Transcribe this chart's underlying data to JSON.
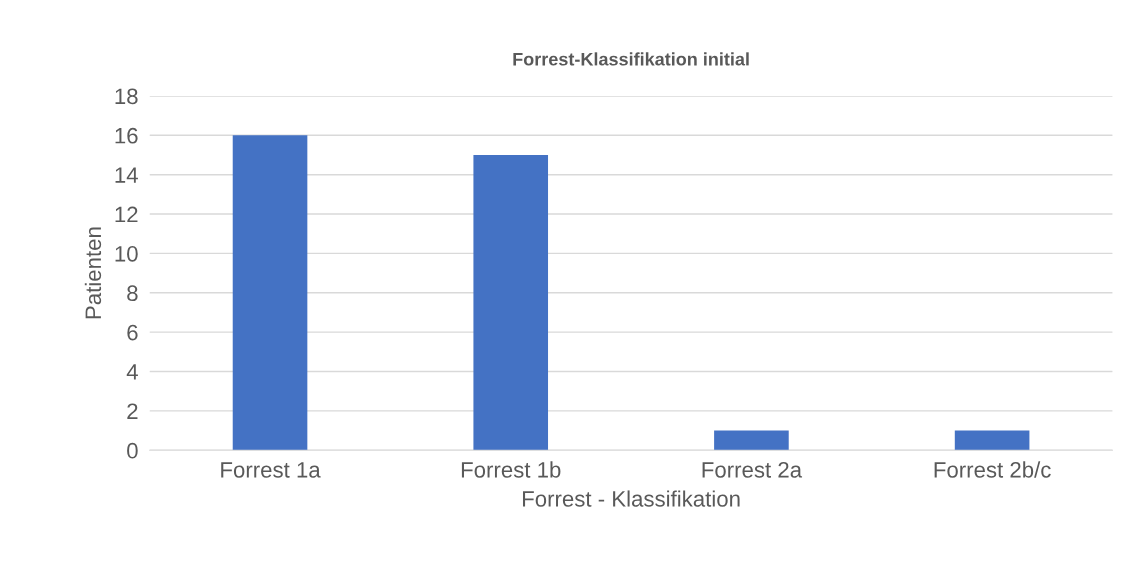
{
  "chart_data": {
    "type": "bar",
    "title": "Forrest-Klassifikation initial",
    "xlabel": "Forrest - Klassifikation",
    "ylabel": "Patienten",
    "categories": [
      "Forrest 1a",
      "Forrest 1b",
      "Forrest 2a",
      "Forrest 2b/c"
    ],
    "values": [
      16,
      15,
      1,
      1
    ],
    "color": "#4472c4",
    "ylim": [
      0,
      18
    ],
    "yticks": [
      0,
      2,
      4,
      6,
      8,
      10,
      12,
      14,
      16,
      18
    ],
    "grid": "y"
  }
}
